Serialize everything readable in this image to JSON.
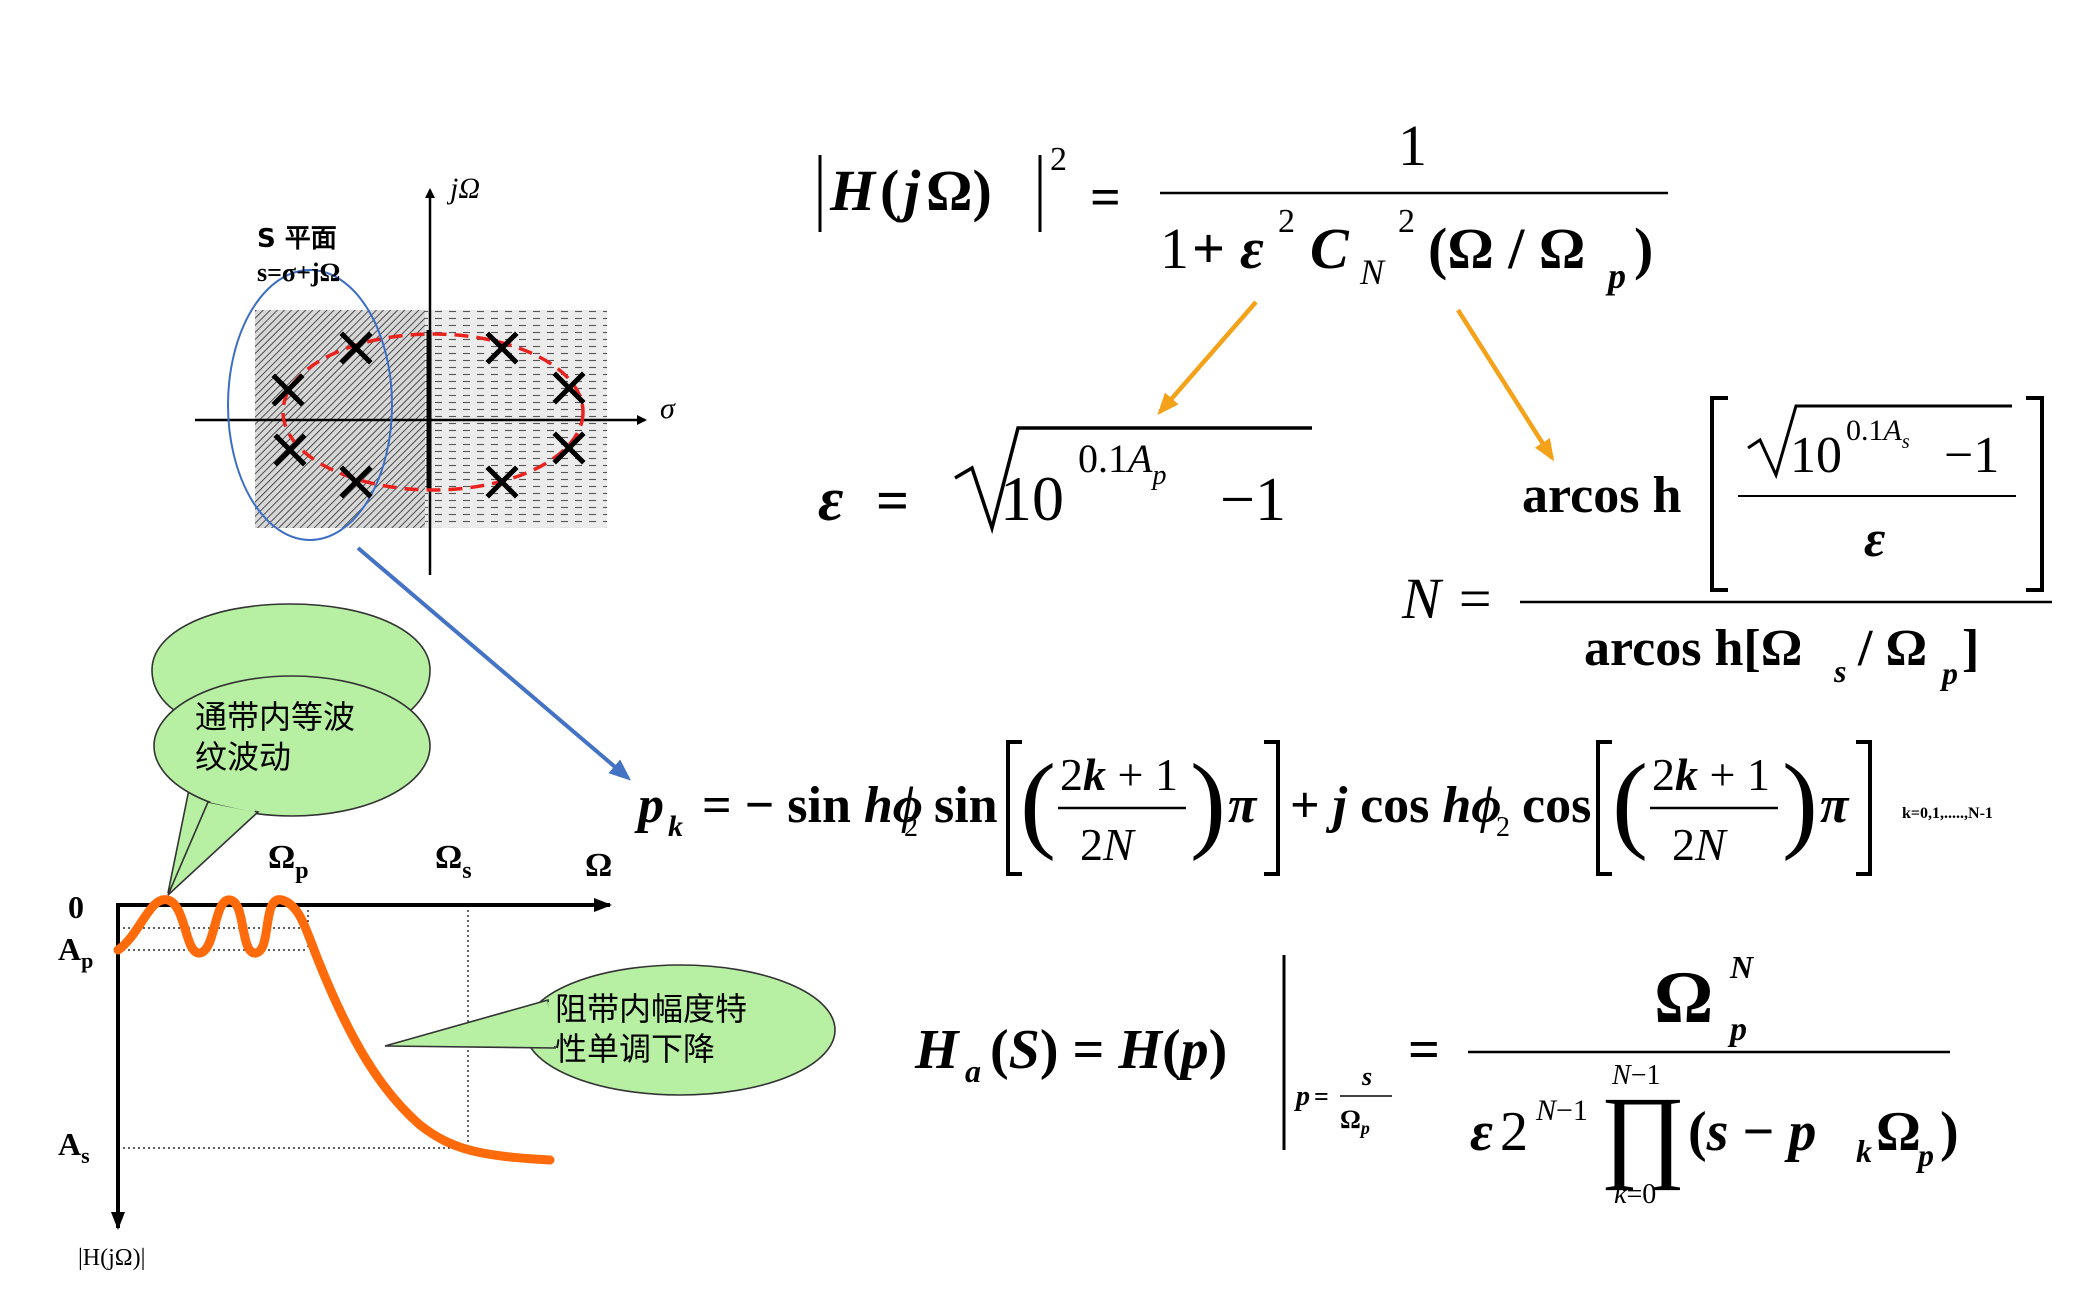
{
  "splane": {
    "title": "S 平面",
    "definition": "s=σ+jΩ",
    "axis_x": "σ",
    "axis_y": "jΩ"
  },
  "response_plot": {
    "zero_label": "0",
    "ap_label": "A",
    "ap_sub": "p",
    "as_label": "A",
    "as_sub": "s",
    "omega_p_label": "Ω",
    "omega_p_sub": "p",
    "omega_s_label": "Ω",
    "omega_s_sub": "s",
    "omega_label": "Ω",
    "yaxis_label": "|H(jΩ)|"
  },
  "callouts": {
    "passband_line1": "通带内等波",
    "passband_line2": "纹波动",
    "stopband_line1": "阻带内幅度特",
    "stopband_line2": "性单调下降"
  },
  "formulas": {
    "num_one": "1",
    "eps_text": "ε = √10",
    "eps_exp": "0.1A",
    "eps_exp_sub": "p",
    "minus_one": "−1",
    "n_lhs": "N =",
    "arcosh": "arcos h",
    "denom_arcosh": "arcos h[Ω",
    "pk_index": "k=0,1,.....,N-1"
  },
  "colors": {
    "ellipse_blue": "#3c6fc4",
    "arrow_blue": "#4472c4",
    "arrow_orange": "#f5a21b",
    "pole_circle_red": "#e8231f",
    "curve_orange": "#ff6a0a",
    "callout_fill": "#b7f0a3"
  }
}
